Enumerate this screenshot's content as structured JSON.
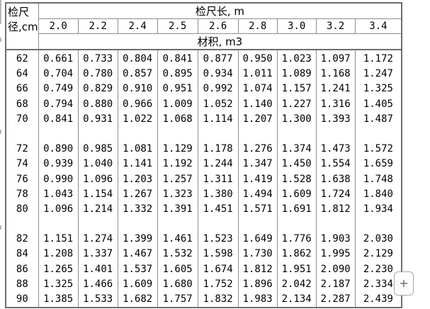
{
  "table": {
    "corner_header_line1": "检尺",
    "corner_header_line2": "径,cm",
    "length_header": "检尺长, m",
    "volume_header": "材积, m3",
    "length_columns": [
      "2.0",
      "2.2",
      "2.4",
      "2.5",
      "2.6",
      "2.8",
      "3.0",
      "3.2",
      "3.4"
    ],
    "row_groups": [
      {
        "diameters": [
          "62",
          "64",
          "66",
          "68",
          "70"
        ],
        "rows": [
          [
            "0.661",
            "0.733",
            "0.804",
            "0.841",
            "0.877",
            "0.950",
            "1.023",
            "1.097",
            "1.172"
          ],
          [
            "0.704",
            "0.780",
            "0.857",
            "0.895",
            "0.934",
            "1.011",
            "1.089",
            "1.168",
            "1.247"
          ],
          [
            "0.749",
            "0.829",
            "0.910",
            "0.951",
            "0.992",
            "1.074",
            "1.157",
            "1.241",
            "1.325"
          ],
          [
            "0.794",
            "0.880",
            "0.966",
            "1.009",
            "1.052",
            "1.140",
            "1.227",
            "1.316",
            "1.405"
          ],
          [
            "0.841",
            "0.931",
            "1.022",
            "1.068",
            "1.114",
            "1.207",
            "1.300",
            "1.393",
            "1.487"
          ]
        ]
      },
      {
        "diameters": [
          "72",
          "74",
          "76",
          "78",
          "80"
        ],
        "rows": [
          [
            "0.890",
            "0.985",
            "1.081",
            "1.129",
            "1.178",
            "1.276",
            "1.374",
            "1.473",
            "1.572"
          ],
          [
            "0.939",
            "1.040",
            "1.141",
            "1.192",
            "1.244",
            "1.347",
            "1.450",
            "1.554",
            "1.659"
          ],
          [
            "0.990",
            "1.096",
            "1.203",
            "1.257",
            "1.311",
            "1.419",
            "1.528",
            "1.638",
            "1.748"
          ],
          [
            "1.043",
            "1.154",
            "1.267",
            "1.323",
            "1.380",
            "1.494",
            "1.609",
            "1.724",
            "1.840"
          ],
          [
            "1.096",
            "1.214",
            "1.332",
            "1.391",
            "1.451",
            "1.571",
            "1.691",
            "1.812",
            "1.934"
          ]
        ]
      },
      {
        "diameters": [
          "82",
          "84",
          "86",
          "88",
          "90"
        ],
        "rows": [
          [
            "1.151",
            "1.274",
            "1.399",
            "1.461",
            "1.523",
            "1.649",
            "1.776",
            "1.903",
            "2.030"
          ],
          [
            "1.208",
            "1.337",
            "1.467",
            "1.532",
            "1.598",
            "1.730",
            "1.862",
            "1.995",
            "2.129"
          ],
          [
            "1.265",
            "1.401",
            "1.537",
            "1.605",
            "1.674",
            "1.812",
            "1.951",
            "2.090",
            "2.230"
          ],
          [
            "1.325",
            "1.466",
            "1.609",
            "1.680",
            "1.752",
            "1.896",
            "2.042",
            "2.187",
            "2.334"
          ],
          [
            "1.385",
            "1.533",
            "1.682",
            "1.757",
            "1.832",
            "1.983",
            "2.134",
            "2.287",
            "2.439"
          ]
        ]
      }
    ]
  },
  "expand_button": {
    "label": "+"
  },
  "colors": {
    "outer_border": "#6e6e6e",
    "inner_border": "#8f8f8f",
    "text": "#000000",
    "button_border": "#a9a9a9"
  }
}
